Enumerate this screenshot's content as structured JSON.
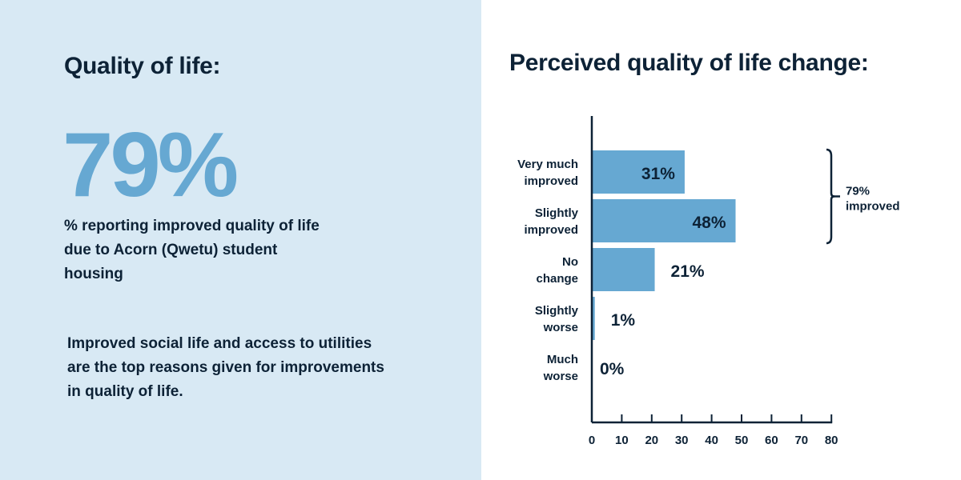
{
  "left": {
    "title": "Quality of life:",
    "big_stat": "79%",
    "caption": "% reporting improved quality of life due to Acorn (Qwetu) student housing",
    "reasons": "Improved social life and access to utilities are the top reasons given for improvements in quality of life."
  },
  "right": {
    "title": "Perceived quality of life change:"
  },
  "colors": {
    "left_background": "#d8e9f4",
    "accent": "#66a8d2",
    "text": "#0d2236"
  },
  "chart_data": {
    "type": "bar",
    "orientation": "horizontal",
    "title": "Perceived quality of life change:",
    "categories": [
      [
        "Very much",
        "improved"
      ],
      [
        "Slightly",
        "improved"
      ],
      [
        "No",
        "change"
      ],
      [
        "Slightly",
        "worse"
      ],
      [
        "Much",
        "worse"
      ]
    ],
    "values": [
      31,
      48,
      21,
      1,
      0
    ],
    "value_labels": [
      "31%",
      "48%",
      "21%",
      "1%",
      "0%"
    ],
    "xlim": [
      0,
      80
    ],
    "xticks": [
      0,
      10,
      20,
      30,
      40,
      50,
      60,
      70,
      80
    ],
    "xlabel": "",
    "ylabel": "",
    "grid": false,
    "annotation": {
      "text": [
        "79%",
        "improved"
      ],
      "spans_categories": [
        0,
        1
      ]
    },
    "bar_color": "#66a8d2"
  }
}
